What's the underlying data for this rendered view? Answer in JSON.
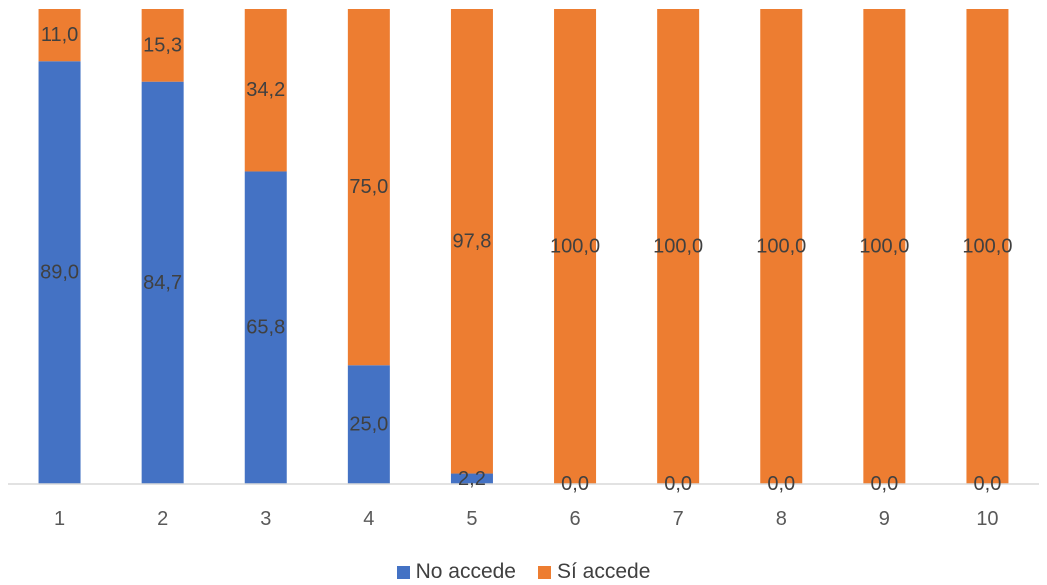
{
  "chart_data": {
    "type": "bar",
    "stacked": true,
    "percent_stacked": true,
    "categories": [
      "1",
      "2",
      "3",
      "4",
      "5",
      "6",
      "7",
      "8",
      "9",
      "10"
    ],
    "series": [
      {
        "name": "No accede",
        "color": "#4472C4",
        "values": [
          89.0,
          84.7,
          65.8,
          25.0,
          2.2,
          0.0,
          0.0,
          0.0,
          0.0,
          0.0
        ],
        "labels": [
          "89,0",
          "84,7",
          "65,8",
          "25,0",
          "2,2",
          "0,0",
          "0,0",
          "0,0",
          "0,0",
          "0,0"
        ]
      },
      {
        "name": "Sí accede",
        "color": "#ED7D31",
        "values": [
          11.0,
          15.3,
          34.2,
          75.0,
          97.8,
          100.0,
          100.0,
          100.0,
          100.0,
          100.0
        ],
        "labels": [
          "11,0",
          "15,3",
          "34,2",
          "75,0",
          "97,8",
          "100,0",
          "100,0",
          "100,0",
          "100,0",
          "100,0"
        ]
      }
    ],
    "ylim": [
      0,
      100
    ],
    "grid": false,
    "legend_position": "bottom",
    "title": "",
    "xlabel": "",
    "ylabel": ""
  }
}
